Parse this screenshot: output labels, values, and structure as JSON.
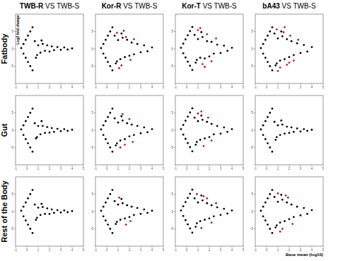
{
  "row_labels": [
    "Fatbody",
    "Gut",
    "Rest of the Body"
  ],
  "chart_data": [
    {
      "type": "scatter",
      "title": "TWB-R VS TWB-S",
      "ylabel": "Log2 fold change",
      "xlim": [
        -1,
        5
      ],
      "ylim": [
        -10,
        10
      ],
      "xticks": [
        -1,
        0,
        1,
        2,
        3,
        4,
        5
      ],
      "yticks": [
        -5,
        0,
        5
      ],
      "series": [
        {
          "color": "#000000",
          "x": [
            -0.5,
            -0.3,
            -0.1,
            0.1,
            0.3,
            0.5,
            -0.3,
            -0.1,
            0.1,
            0.3,
            0.5,
            0.7,
            0.9,
            1.0,
            1.2,
            1.4,
            1.6,
            1.8,
            2.0,
            2.2,
            2.4,
            2.7,
            3.0,
            3.3,
            3.6,
            4.0,
            0.8,
            1.3
          ],
          "values": [
            0.2,
            1.4,
            2.6,
            3.8,
            5.0,
            6.2,
            -1.4,
            -2.6,
            -3.8,
            -5.0,
            -6.2,
            2.2,
            -1.8,
            1.0,
            -1.1,
            1.4,
            -0.6,
            1.0,
            -0.8,
            0.7,
            -0.4,
            0.5,
            -0.3,
            0.4,
            -0.2,
            0.1,
            -2.6,
            2.4
          ]
        }
      ]
    },
    {
      "type": "scatter",
      "title": "Kor-R VS TWB-S",
      "xlim": [
        -1,
        5
      ],
      "ylim": [
        -10,
        10
      ],
      "xticks": [
        -1,
        0,
        1,
        2,
        3,
        4,
        5
      ],
      "yticks": [
        -5,
        0,
        5
      ],
      "series": [
        {
          "color": "#000000",
          "x": [
            -0.5,
            -0.3,
            -0.1,
            0.1,
            0.3,
            0.5,
            -0.3,
            -0.1,
            0.1,
            0.3,
            0.5,
            0.7,
            0.9,
            1.0,
            1.2,
            1.4,
            1.6,
            1.8,
            2.0,
            2.2,
            2.4,
            2.7,
            3.0,
            3.3,
            3.6,
            4.0,
            0.8,
            1.3
          ],
          "values": [
            0.2,
            1.4,
            2.6,
            3.8,
            5.0,
            6.2,
            -1.4,
            -2.6,
            -3.8,
            -5.0,
            -6.2,
            3.8,
            -3.6,
            2.5,
            -3.0,
            3.2,
            -2.4,
            2.6,
            -2.0,
            1.8,
            -1.6,
            1.4,
            -1.0,
            1.0,
            -0.7,
            0.4,
            -4.2,
            4.4
          ]
        },
        {
          "color": "#b22222",
          "x": [
            0.9,
            1.3,
            1.7,
            2.1,
            1.5,
            2.4,
            1.1
          ],
          "values": [
            4.6,
            -4.8,
            3.4,
            -3.2,
            5.2,
            2.8,
            -5.6
          ]
        }
      ]
    },
    {
      "type": "scatter",
      "title": "Kor-T VS TWB-S",
      "xlim": [
        -1,
        5
      ],
      "ylim": [
        -10,
        10
      ],
      "xticks": [
        -1,
        0,
        1,
        2,
        3,
        4,
        5
      ],
      "yticks": [
        -5,
        0,
        5
      ],
      "series": [
        {
          "color": "#000000",
          "x": [
            -0.5,
            -0.3,
            -0.1,
            0.1,
            0.3,
            0.5,
            -0.3,
            -0.1,
            0.1,
            0.3,
            0.5,
            0.7,
            0.9,
            1.0,
            1.2,
            1.4,
            1.6,
            1.8,
            2.0,
            2.2,
            2.4,
            2.7,
            3.0,
            3.3,
            3.6,
            4.0,
            0.8,
            1.3
          ],
          "values": [
            0.3,
            1.5,
            2.7,
            3.9,
            5.1,
            6.3,
            -1.3,
            -2.5,
            -3.7,
            -4.9,
            -6.1,
            4.0,
            -3.2,
            2.8,
            -2.6,
            3.4,
            -2.8,
            2.2,
            -2.2,
            2.0,
            -1.4,
            1.2,
            -1.2,
            0.9,
            -0.6,
            0.3,
            -4.0,
            4.8
          ]
        },
        {
          "color": "#b22222",
          "x": [
            1.0,
            1.4,
            1.8,
            2.2,
            1.2,
            2.6,
            1.6
          ],
          "values": [
            5.4,
            -4.4,
            4.2,
            -3.6,
            6.0,
            3.0,
            -5.2
          ]
        }
      ]
    },
    {
      "type": "scatter",
      "title": "bA43 VS TWB-S",
      "xlim": [
        -1,
        5
      ],
      "ylim": [
        -10,
        10
      ],
      "xticks": [
        -1,
        0,
        1,
        2,
        3,
        4,
        5
      ],
      "yticks": [
        -5,
        0,
        5
      ],
      "series": [
        {
          "color": "#000000",
          "x": [
            -0.5,
            -0.3,
            -0.1,
            0.1,
            0.3,
            0.5,
            -0.3,
            -0.1,
            0.1,
            0.3,
            0.5,
            0.7,
            0.9,
            1.0,
            1.2,
            1.4,
            1.6,
            1.8,
            2.0,
            2.2,
            2.4,
            2.7,
            3.0,
            3.3,
            3.6,
            4.0,
            0.8,
            1.3
          ],
          "values": [
            0.2,
            1.4,
            2.6,
            3.8,
            5.0,
            6.2,
            -1.4,
            -2.6,
            -3.8,
            -5.0,
            -6.2,
            4.4,
            -4.2,
            3.0,
            -3.4,
            3.6,
            -3.0,
            2.8,
            -2.4,
            2.2,
            -1.8,
            1.6,
            -1.2,
            1.1,
            -0.8,
            0.5,
            -4.8,
            5.0
          ]
        },
        {
          "color": "#b22222",
          "x": [
            0.9,
            1.2,
            1.5,
            1.8,
            2.1,
            2.4,
            1.0,
            1.6,
            2.0,
            2.8
          ],
          "values": [
            5.6,
            -5.4,
            4.8,
            -4.6,
            3.8,
            -3.4,
            -6.4,
            6.2,
            -4.0,
            2.6
          ]
        }
      ]
    },
    {
      "type": "scatter",
      "xlim": [
        -1,
        5
      ],
      "ylim": [
        -10,
        10
      ],
      "xticks": [
        -1,
        0,
        1,
        2,
        3,
        4,
        5
      ],
      "yticks": [
        -5,
        0,
        5
      ],
      "series": [
        {
          "color": "#000000",
          "x": [
            -0.5,
            -0.3,
            -0.1,
            0.1,
            0.3,
            0.5,
            -0.3,
            -0.1,
            0.1,
            0.3,
            0.5,
            0.7,
            0.9,
            1.0,
            1.2,
            1.4,
            1.6,
            1.8,
            2.0,
            2.2,
            2.4,
            2.7,
            3.0,
            3.3,
            3.6,
            4.0,
            0.8,
            1.3
          ],
          "values": [
            0.2,
            1.4,
            2.6,
            3.8,
            5.0,
            6.2,
            -1.4,
            -2.6,
            -3.8,
            -5.0,
            -6.2,
            2.0,
            -2.0,
            1.2,
            -1.2,
            1.2,
            -0.8,
            0.9,
            -0.7,
            0.6,
            -0.5,
            0.4,
            -0.3,
            0.3,
            -0.2,
            0.1,
            -2.4,
            2.6
          ]
        }
      ]
    },
    {
      "type": "scatter",
      "xlim": [
        -1,
        5
      ],
      "ylim": [
        -10,
        10
      ],
      "xticks": [
        -1,
        0,
        1,
        2,
        3,
        4,
        5
      ],
      "yticks": [
        -5,
        0,
        5
      ],
      "series": [
        {
          "color": "#000000",
          "x": [
            -0.5,
            -0.3,
            -0.1,
            0.1,
            0.3,
            0.5,
            -0.3,
            -0.1,
            0.1,
            0.3,
            0.5,
            0.7,
            0.9,
            1.0,
            1.2,
            1.4,
            1.6,
            1.8,
            2.0,
            2.2,
            2.4,
            2.7,
            3.0,
            3.3,
            3.6,
            4.0,
            0.8,
            1.3
          ],
          "values": [
            0.2,
            1.4,
            2.6,
            3.8,
            5.0,
            6.2,
            -1.4,
            -2.6,
            -3.8,
            -5.0,
            -6.2,
            3.4,
            -3.8,
            2.2,
            -3.0,
            2.8,
            -2.6,
            2.0,
            -1.8,
            1.6,
            -1.4,
            1.2,
            -0.9,
            0.8,
            -0.6,
            0.3,
            -4.4,
            4.0
          ]
        },
        {
          "color": "#b22222",
          "x": [
            1.2,
            1.6,
            2.0,
            1.4,
            2.3
          ],
          "values": [
            -5.0,
            -4.2,
            3.2,
            4.6,
            -3.4
          ]
        }
      ]
    },
    {
      "type": "scatter",
      "xlim": [
        -1,
        5
      ],
      "ylim": [
        -10,
        10
      ],
      "xticks": [
        -1,
        0,
        1,
        2,
        3,
        4,
        5
      ],
      "yticks": [
        -5,
        0,
        5
      ],
      "series": [
        {
          "color": "#000000",
          "x": [
            -0.5,
            -0.3,
            -0.1,
            0.1,
            0.3,
            0.5,
            -0.3,
            -0.1,
            0.1,
            0.3,
            0.5,
            0.7,
            0.9,
            1.0,
            1.2,
            1.4,
            1.6,
            1.8,
            2.0,
            2.2,
            2.4,
            2.7,
            3.0,
            3.3,
            3.6,
            4.0,
            0.8,
            1.3
          ],
          "values": [
            0.3,
            1.5,
            2.7,
            3.9,
            5.1,
            6.3,
            -1.3,
            -2.5,
            -3.7,
            -4.9,
            -6.1,
            3.6,
            -3.4,
            2.6,
            -2.8,
            3.0,
            -2.4,
            2.4,
            -2.0,
            1.8,
            -1.2,
            1.2,
            -1.0,
            0.8,
            -0.5,
            0.3,
            -4.2,
            4.2
          ]
        },
        {
          "color": "#b22222",
          "x": [
            1.0,
            1.5,
            1.9,
            1.3,
            2.2
          ],
          "values": [
            4.8,
            -4.6,
            3.6,
            5.4,
            -3.0
          ]
        }
      ]
    },
    {
      "type": "scatter",
      "xlim": [
        -1,
        5
      ],
      "ylim": [
        -10,
        10
      ],
      "xticks": [
        -1,
        0,
        1,
        2,
        3,
        4,
        5
      ],
      "yticks": [
        -5,
        0,
        5
      ],
      "series": [
        {
          "color": "#000000",
          "x": [
            -0.5,
            -0.3,
            -0.1,
            0.1,
            0.3,
            0.5,
            -0.3,
            -0.1,
            0.1,
            0.3,
            0.5,
            0.7,
            0.9,
            1.0,
            1.2,
            1.4,
            1.6,
            1.8,
            2.0,
            2.2,
            2.4,
            2.7,
            3.0,
            3.3,
            3.6,
            4.0,
            0.8,
            1.3
          ],
          "values": [
            0.2,
            1.4,
            2.6,
            3.8,
            5.0,
            6.2,
            -1.4,
            -2.6,
            -3.8,
            -5.0,
            -6.2,
            2.4,
            -2.0,
            1.4,
            -1.4,
            1.6,
            -1.0,
            1.0,
            -0.8,
            0.8,
            -0.5,
            0.5,
            -0.4,
            0.3,
            -0.2,
            0.1,
            -2.8,
            2.8
          ]
        }
      ]
    },
    {
      "type": "scatter",
      "xlim": [
        -1,
        5
      ],
      "ylim": [
        -10,
        10
      ],
      "xticks": [
        -1,
        0,
        1,
        2,
        3,
        4,
        5
      ],
      "yticks": [
        -5,
        0,
        5
      ],
      "series": [
        {
          "color": "#000000",
          "x": [
            -0.5,
            -0.3,
            -0.1,
            0.1,
            0.3,
            0.5,
            -0.3,
            -0.1,
            0.1,
            0.3,
            0.5,
            0.7,
            0.9,
            1.0,
            1.2,
            1.4,
            1.6,
            1.8,
            2.0,
            2.2,
            2.4,
            2.7,
            3.0,
            3.3,
            3.6,
            4.0,
            0.8,
            1.3
          ],
          "values": [
            0.2,
            1.4,
            2.6,
            3.8,
            5.0,
            6.2,
            -1.4,
            -2.6,
            -3.8,
            -5.0,
            -6.2,
            2.0,
            -1.8,
            1.1,
            -1.0,
            1.3,
            -0.7,
            0.9,
            -0.7,
            0.6,
            -0.4,
            0.4,
            -0.3,
            0.3,
            -0.2,
            0.1,
            -2.4,
            2.2
          ]
        }
      ]
    },
    {
      "type": "scatter",
      "xlim": [
        -1,
        5
      ],
      "ylim": [
        -10,
        10
      ],
      "xticks": [
        -1,
        0,
        1,
        2,
        3,
        4,
        5
      ],
      "yticks": [
        -5,
        0,
        5
      ],
      "series": [
        {
          "color": "#000000",
          "x": [
            -0.5,
            -0.3,
            -0.1,
            0.1,
            0.3,
            0.5,
            -0.3,
            -0.1,
            0.1,
            0.3,
            0.5,
            0.7,
            0.9,
            1.0,
            1.2,
            1.4,
            1.6,
            1.8,
            2.0,
            2.2,
            2.4,
            2.7,
            3.0,
            3.3,
            3.6,
            4.0,
            0.8,
            1.3
          ],
          "values": [
            0.2,
            1.4,
            2.6,
            3.8,
            5.0,
            6.2,
            -1.4,
            -2.6,
            -3.8,
            -5.0,
            -6.2,
            3.0,
            -3.0,
            2.0,
            -2.4,
            2.4,
            -2.0,
            1.8,
            -1.6,
            1.4,
            -1.0,
            1.0,
            -0.7,
            0.6,
            -0.4,
            0.2,
            -3.6,
            3.6
          ]
        },
        {
          "color": "#b22222",
          "x": [
            1.1,
            1.7,
            2.1
          ],
          "values": [
            4.0,
            -3.8,
            -2.8
          ]
        }
      ]
    },
    {
      "type": "scatter",
      "xlim": [
        -1,
        5
      ],
      "ylim": [
        -10,
        10
      ],
      "xticks": [
        -1,
        0,
        1,
        2,
        3,
        4,
        5
      ],
      "yticks": [
        -5,
        0,
        5
      ],
      "series": [
        {
          "color": "#000000",
          "x": [
            -0.5,
            -0.3,
            -0.1,
            0.1,
            0.3,
            0.5,
            -0.3,
            -0.1,
            0.1,
            0.3,
            0.5,
            0.7,
            0.9,
            1.0,
            1.2,
            1.4,
            1.6,
            1.8,
            2.0,
            2.2,
            2.4,
            2.7,
            3.0,
            3.3,
            3.6,
            4.0,
            0.8,
            1.3
          ],
          "values": [
            0.3,
            1.5,
            2.7,
            3.9,
            5.1,
            6.3,
            -1.3,
            -2.5,
            -3.7,
            -4.9,
            -6.1,
            3.8,
            -3.4,
            2.6,
            -2.8,
            3.2,
            -2.4,
            2.4,
            -2.0,
            1.8,
            -1.4,
            1.2,
            -1.0,
            0.8,
            -0.6,
            0.3,
            -4.4,
            4.6
          ]
        },
        {
          "color": "#b22222",
          "x": [
            0.9,
            1.3,
            1.8,
            2.2,
            1.5,
            2.6
          ],
          "values": [
            5.0,
            -4.8,
            3.8,
            -3.2,
            4.4,
            2.4
          ]
        }
      ]
    },
    {
      "type": "scatter",
      "xlabel": "Base mean (log10)",
      "xlim": [
        -1,
        5
      ],
      "ylim": [
        -10,
        10
      ],
      "xticks": [
        -1,
        0,
        1,
        2,
        3,
        4,
        5
      ],
      "yticks": [
        -5,
        0,
        5
      ],
      "series": [
        {
          "color": "#000000",
          "x": [
            -0.5,
            -0.3,
            -0.1,
            0.1,
            0.3,
            0.5,
            -0.3,
            -0.1,
            0.1,
            0.3,
            0.5,
            0.7,
            0.9,
            1.0,
            1.2,
            1.4,
            1.6,
            1.8,
            2.0,
            2.2,
            2.4,
            2.7,
            3.0,
            3.3,
            3.6,
            4.0,
            0.8,
            1.3
          ],
          "values": [
            0.2,
            1.4,
            2.6,
            3.8,
            5.0,
            6.2,
            -1.4,
            -2.6,
            -3.8,
            -5.0,
            -6.2,
            4.2,
            -4.0,
            2.8,
            -3.2,
            3.4,
            -2.8,
            2.6,
            -2.2,
            2.0,
            -1.6,
            1.4,
            -1.1,
            1.0,
            -0.7,
            0.4,
            -4.6,
            4.8
          ]
        },
        {
          "color": "#b22222",
          "x": [
            1.0,
            1.4,
            1.9,
            2.3,
            1.2,
            1.7
          ],
          "values": [
            5.2,
            -5.0,
            4.0,
            -3.6,
            -5.8,
            4.6
          ]
        }
      ]
    }
  ]
}
